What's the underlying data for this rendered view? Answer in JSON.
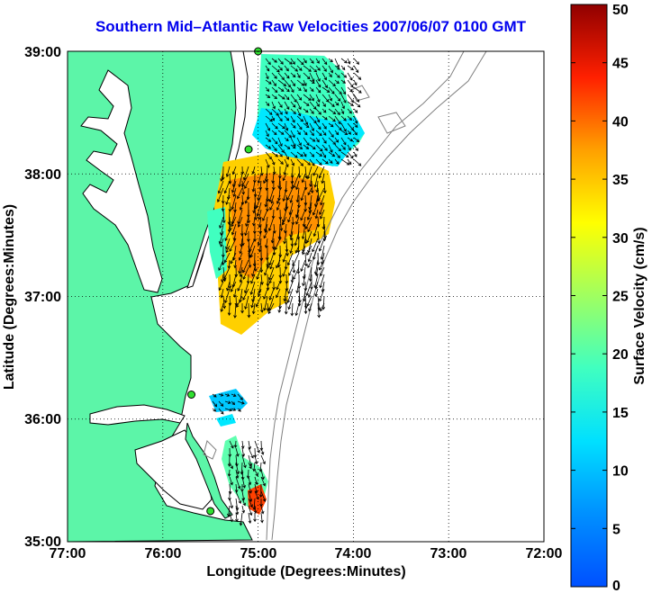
{
  "map": {
    "title": "Southern Mid–Atlantic Raw Velocities 2007/06/07 0100 GMT",
    "xlabel": "Longitude (Degrees:Minutes)",
    "ylabel": "Latitude (Degrees:Minutes)",
    "x_ticks": [
      "77:00",
      "76:00",
      "75:00",
      "74:00",
      "73:00",
      "72:00"
    ],
    "y_ticks": [
      "39:00",
      "38:00",
      "37:00",
      "36:00",
      "35:00"
    ],
    "extent": {
      "lon": [
        -77,
        -72
      ],
      "lat": [
        35,
        39
      ]
    },
    "grid": true,
    "land_color": "#5cf5a8",
    "arrow_color": "#000000",
    "stations": [
      {
        "lon": -75.0,
        "lat": 39.0
      },
      {
        "lon": -75.1,
        "lat": 38.2
      },
      {
        "lon": -75.7,
        "lat": 36.2
      },
      {
        "lon": -75.5,
        "lat": 35.25
      }
    ]
  },
  "colorbar": {
    "label": "Surface Velocity (cm/s)",
    "ticks": [
      "0",
      "5",
      "10",
      "15",
      "20",
      "25",
      "30",
      "35",
      "40",
      "45",
      "50"
    ],
    "range": [
      0,
      50
    ],
    "colormap": "jet"
  }
}
